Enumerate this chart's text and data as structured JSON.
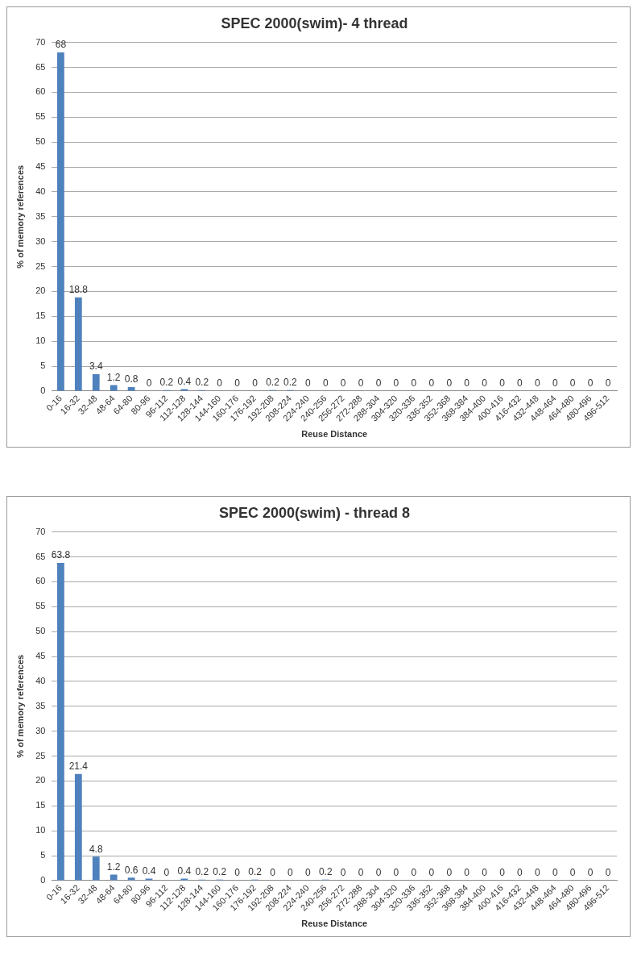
{
  "chart_data": [
    {
      "type": "bar",
      "title": "SPEC 2000(swim)- 4 thread",
      "xlabel": "Reuse Distance",
      "ylabel": "% of memory references",
      "categories": [
        "0-16",
        "16-32",
        "32-48",
        "48-64",
        "64-80",
        "80-96",
        "96-112",
        "112-128",
        "128-144",
        "144-160",
        "160-176",
        "176-192",
        "192-208",
        "208-224",
        "224-240",
        "240-256",
        "256-272",
        "272-288",
        "288-304",
        "304-320",
        "320-336",
        "336-352",
        "352-368",
        "368-384",
        "384-400",
        "400-416",
        "416-432",
        "432-448",
        "448-464",
        "464-480",
        "480-496",
        "496-512"
      ],
      "values": [
        68,
        18.8,
        3.4,
        1.2,
        0.8,
        0,
        0.2,
        0.4,
        0.2,
        0,
        0,
        0,
        0.2,
        0.2,
        0,
        0,
        0,
        0,
        0,
        0,
        0,
        0,
        0,
        0,
        0,
        0,
        0,
        0,
        0,
        0,
        0,
        0
      ],
      "color": "#4f81bd",
      "ylim": [
        0,
        70
      ],
      "yticks": [
        0,
        5,
        10,
        15,
        20,
        25,
        30,
        35,
        40,
        45,
        50,
        55,
        60,
        65,
        70
      ],
      "grid": "y",
      "legend": false,
      "data_labels": true
    },
    {
      "type": "bar",
      "title": "SPEC 2000(swim) - thread 8",
      "xlabel": "Reuse Distance",
      "ylabel": "% of memory references",
      "categories": [
        "0-16",
        "16-32",
        "32-48",
        "48-64",
        "64-80",
        "80-96",
        "96-112",
        "112-128",
        "128-144",
        "144-160",
        "160-176",
        "176-192",
        "192-208",
        "208-224",
        "224-240",
        "240-256",
        "256-272",
        "272-288",
        "288-304",
        "304-320",
        "320-336",
        "336-352",
        "352-368",
        "368-384",
        "384-400",
        "400-416",
        "416-432",
        "432-448",
        "448-464",
        "464-480",
        "480-496",
        "496-512"
      ],
      "values": [
        63.8,
        21.4,
        4.8,
        1.2,
        0.6,
        0.4,
        0,
        0.4,
        0.2,
        0.2,
        0,
        0.2,
        0,
        0,
        0,
        0.2,
        0,
        0,
        0,
        0,
        0,
        0,
        0,
        0,
        0,
        0,
        0,
        0,
        0,
        0,
        0,
        0
      ],
      "color": "#4f81bd",
      "ylim": [
        0,
        70
      ],
      "yticks": [
        0,
        5,
        10,
        15,
        20,
        25,
        30,
        35,
        40,
        45,
        50,
        55,
        60,
        65,
        70
      ],
      "grid": "y",
      "legend": false,
      "data_labels": true
    }
  ]
}
